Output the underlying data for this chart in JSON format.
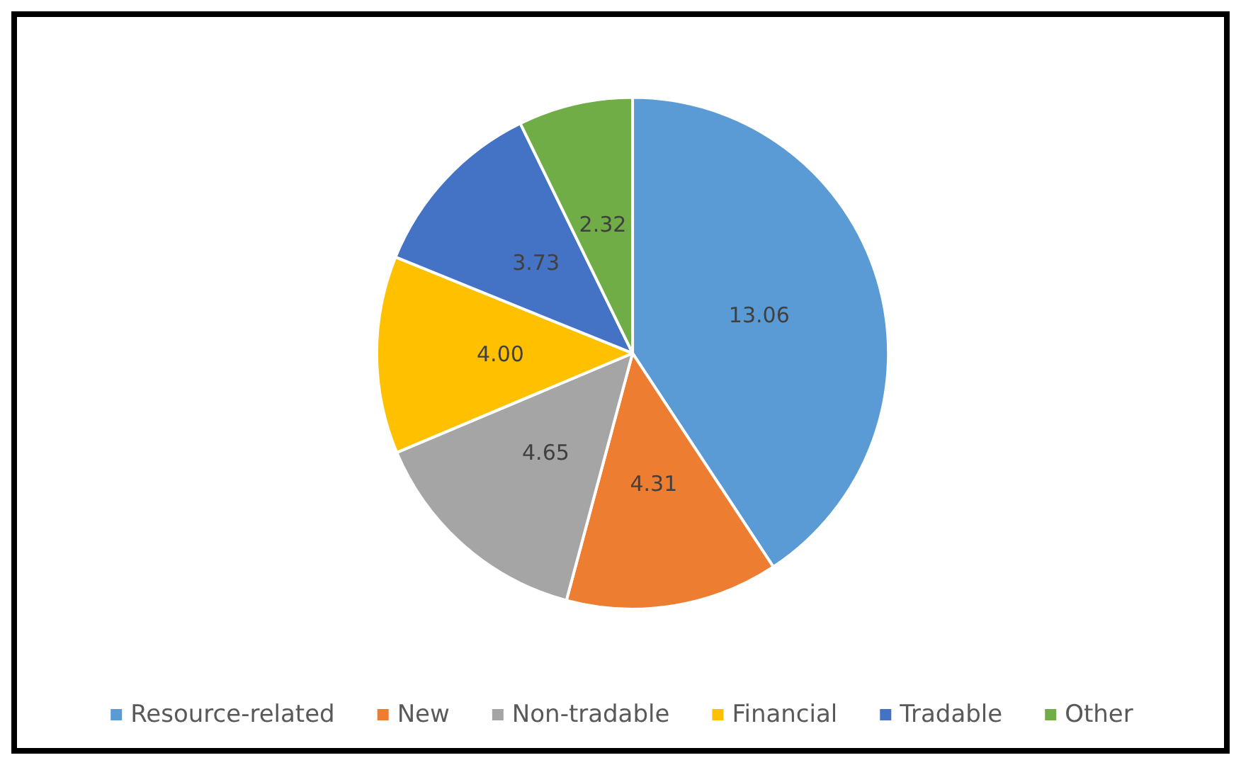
{
  "chart_data": {
    "type": "pie",
    "categories": [
      "Resource-related",
      "New",
      "Non-tradable",
      "Financial",
      "Tradable",
      "Other"
    ],
    "values": [
      13.06,
      4.31,
      4.65,
      4.0,
      3.73,
      2.32
    ],
    "colors": [
      "#5b9bd5",
      "#ed7d31",
      "#a5a5a5",
      "#ffc000",
      "#4472c4",
      "#70ad47"
    ],
    "value_labels": [
      "13.06",
      "4.31",
      "4.65",
      "4.00",
      "3.73",
      "2.32"
    ],
    "legend": "bottom"
  }
}
